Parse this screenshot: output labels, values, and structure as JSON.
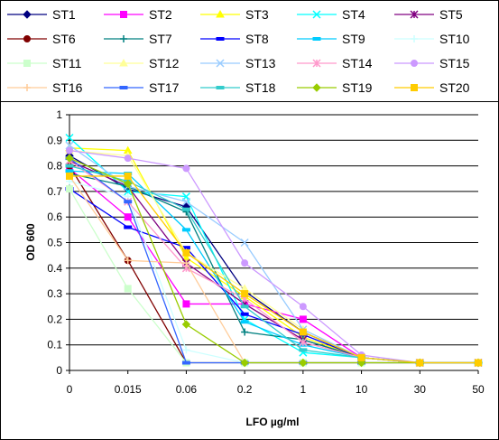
{
  "chart_data": {
    "type": "line",
    "xlabel": "LFO µg/ml",
    "ylabel": "OD 600",
    "categories": [
      "0",
      "0.015",
      "0.06",
      "0.2",
      "1",
      "10",
      "30",
      "50"
    ],
    "ylim": [
      0,
      1
    ],
    "yticks": [
      "0",
      "0.1",
      "0.2",
      "0.3",
      "0.4",
      "0.5",
      "0.6",
      "0.7",
      "0.8",
      "0.9",
      "1"
    ],
    "grid": true,
    "legend_position": "top",
    "series": [
      {
        "name": "ST1",
        "color": "#000080",
        "marker": "diamond",
        "values": [
          0.84,
          0.71,
          0.64,
          0.31,
          0.15,
          0.05,
          0.03,
          0.03
        ]
      },
      {
        "name": "ST2",
        "color": "#ff00ff",
        "marker": "square",
        "values": [
          0.79,
          0.6,
          0.26,
          0.26,
          0.2,
          0.05,
          0.03,
          0.03
        ]
      },
      {
        "name": "ST3",
        "color": "#ffff00",
        "marker": "triangle",
        "values": [
          0.87,
          0.86,
          0.44,
          0.29,
          0.13,
          0.05,
          0.03,
          0.03
        ]
      },
      {
        "name": "ST4",
        "color": "#00ffff",
        "marker": "x",
        "values": [
          0.91,
          0.7,
          0.68,
          0.2,
          0.07,
          0.05,
          0.03,
          0.03
        ]
      },
      {
        "name": "ST5",
        "color": "#800080",
        "marker": "star",
        "values": [
          0.82,
          0.72,
          0.42,
          0.26,
          0.12,
          0.05,
          0.03,
          0.03
        ]
      },
      {
        "name": "ST6",
        "color": "#800000",
        "marker": "circle",
        "values": [
          0.8,
          0.43,
          0.03,
          0.03,
          0.03,
          0.03,
          0.03,
          0.03
        ]
      },
      {
        "name": "ST7",
        "color": "#008080",
        "marker": "plus",
        "values": [
          0.77,
          0.72,
          0.62,
          0.15,
          0.12,
          0.05,
          0.03,
          0.03
        ]
      },
      {
        "name": "ST8",
        "color": "#0000ff",
        "marker": "dash",
        "values": [
          0.71,
          0.56,
          0.48,
          0.22,
          0.14,
          0.05,
          0.03,
          0.03
        ]
      },
      {
        "name": "ST9",
        "color": "#00ccff",
        "marker": "dash",
        "values": [
          0.78,
          0.77,
          0.55,
          0.19,
          0.1,
          0.05,
          0.03,
          0.03
        ]
      },
      {
        "name": "ST10",
        "color": "#ccffff",
        "marker": "plus",
        "values": [
          0.74,
          0.68,
          0.08,
          0.03,
          0.03,
          0.03,
          0.03,
          0.03
        ]
      },
      {
        "name": "ST11",
        "color": "#ccffcc",
        "marker": "square",
        "values": [
          0.71,
          0.32,
          0.03,
          0.03,
          0.03,
          0.03,
          0.03,
          0.03
        ]
      },
      {
        "name": "ST12",
        "color": "#ffff99",
        "marker": "triangle",
        "values": [
          0.86,
          0.84,
          0.46,
          0.32,
          0.16,
          0.05,
          0.03,
          0.03
        ]
      },
      {
        "name": "ST13",
        "color": "#99ccff",
        "marker": "x",
        "values": [
          0.88,
          0.72,
          0.66,
          0.5,
          0.16,
          0.05,
          0.03,
          0.03
        ]
      },
      {
        "name": "ST14",
        "color": "#ff99cc",
        "marker": "star",
        "values": [
          0.82,
          0.66,
          0.4,
          0.28,
          0.11,
          0.05,
          0.03,
          0.03
        ]
      },
      {
        "name": "ST15",
        "color": "#cc99ff",
        "marker": "circle",
        "values": [
          0.86,
          0.83,
          0.79,
          0.42,
          0.25,
          0.06,
          0.03,
          0.03
        ]
      },
      {
        "name": "ST16",
        "color": "#ffcc99",
        "marker": "plus",
        "values": [
          0.76,
          0.43,
          0.42,
          0.03,
          0.03,
          0.03,
          0.03,
          0.03
        ]
      },
      {
        "name": "ST17",
        "color": "#3366ff",
        "marker": "dash",
        "values": [
          0.83,
          0.66,
          0.03,
          0.03,
          0.03,
          0.03,
          0.03,
          0.03
        ]
      },
      {
        "name": "ST18",
        "color": "#33cccc",
        "marker": "dash",
        "values": [
          0.8,
          0.74,
          0.63,
          0.25,
          0.08,
          0.05,
          0.03,
          0.03
        ]
      },
      {
        "name": "ST19",
        "color": "#99cc00",
        "marker": "diamond",
        "values": [
          0.83,
          0.73,
          0.18,
          0.03,
          0.03,
          0.03,
          0.03,
          0.03
        ]
      },
      {
        "name": "ST20",
        "color": "#ffcc00",
        "marker": "square",
        "values": [
          0.76,
          0.76,
          0.46,
          0.3,
          0.15,
          0.05,
          0.03,
          0.03
        ]
      }
    ]
  }
}
